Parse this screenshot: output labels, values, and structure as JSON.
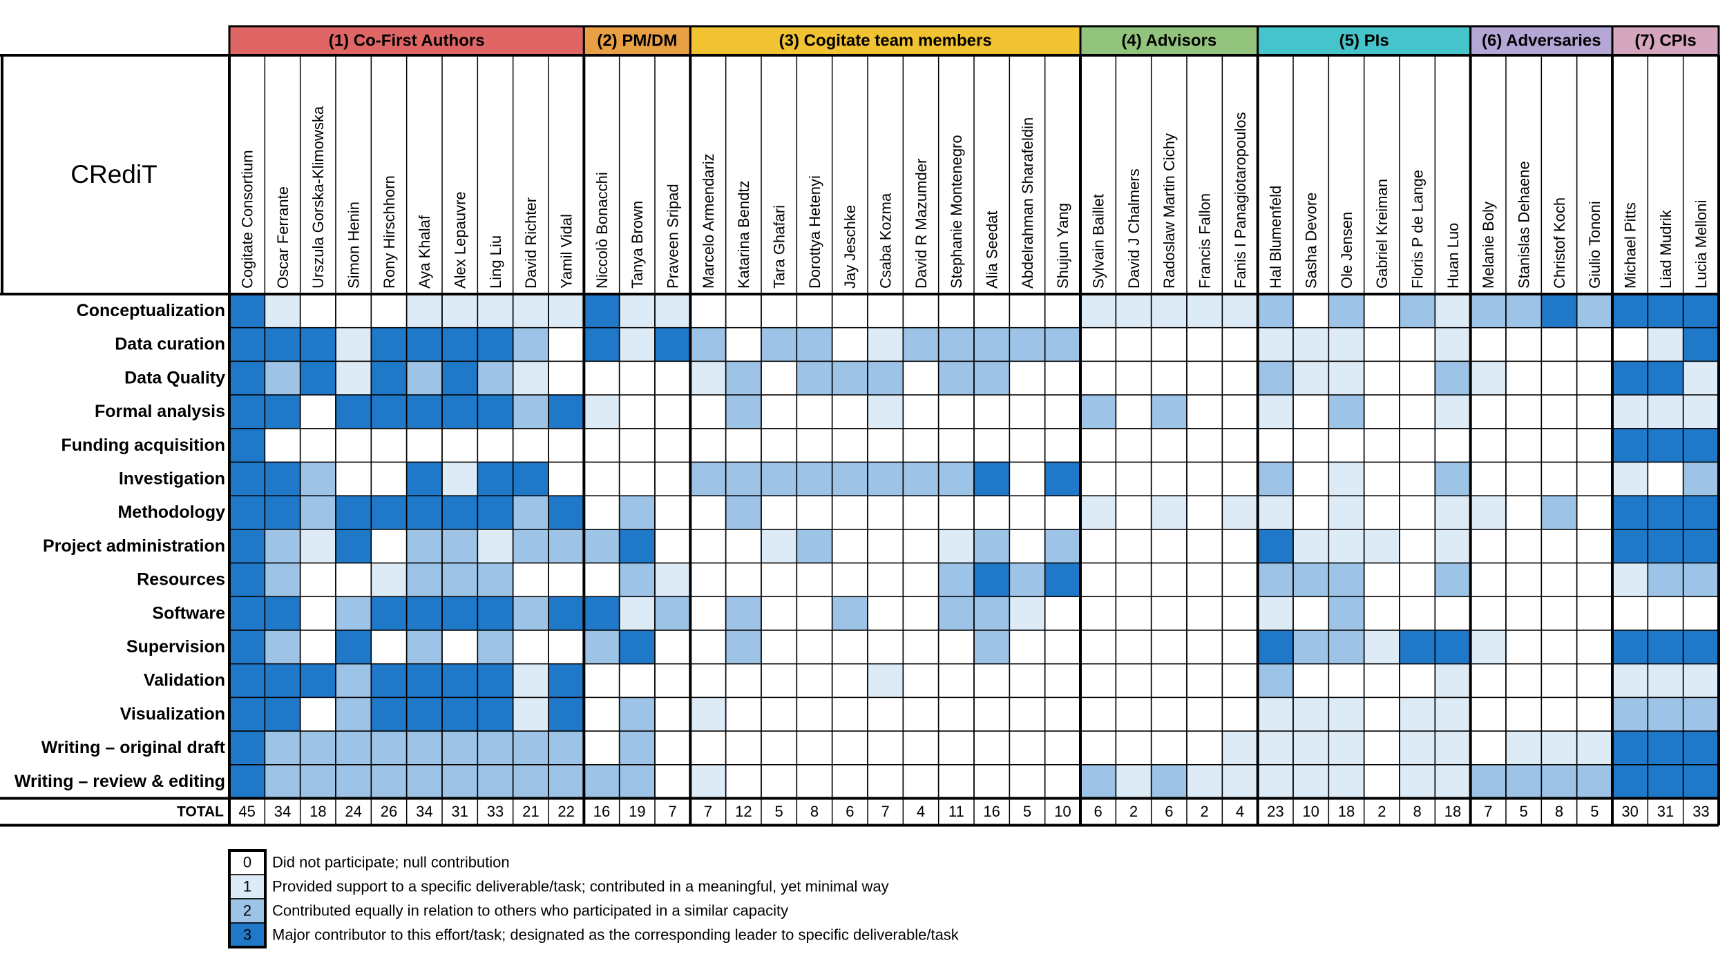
{
  "header": "CRediT",
  "row_labels": [
    "Conceptualization",
    "Data curation",
    "Data Quality",
    "Formal analysis",
    "Funding acquisition",
    "Investigation",
    "Methodology",
    "Project administration",
    "Resources",
    "Software",
    "Supervision",
    "Validation",
    "Visualization",
    "Writing – original draft",
    "Writing – review & editing"
  ],
  "total_label": "TOTAL",
  "level_colors": [
    "#ffffff",
    "#ddebf7",
    "#9dc3e6",
    "#1f78c8"
  ],
  "groups": [
    {
      "label": "(1) Co-First Authors",
      "color": "#e06666",
      "members": [
        {
          "name": "Cogitate Consortium",
          "levels": [
            3,
            3,
            3,
            3,
            3,
            3,
            3,
            3,
            3,
            3,
            3,
            3,
            3,
            3,
            3
          ],
          "total": 45
        },
        {
          "name": "Oscar Ferrante",
          "levels": [
            1,
            3,
            2,
            3,
            0,
            3,
            3,
            2,
            2,
            3,
            2,
            3,
            3,
            2,
            2
          ],
          "total": 34
        },
        {
          "name": "Urszula Gorska-Klimowska",
          "levels": [
            0,
            3,
            3,
            0,
            0,
            2,
            2,
            1,
            0,
            0,
            0,
            3,
            0,
            2,
            2
          ],
          "total": 18
        },
        {
          "name": "Simon Henin",
          "levels": [
            0,
            1,
            1,
            3,
            0,
            0,
            3,
            3,
            0,
            2,
            3,
            2,
            2,
            2,
            2
          ],
          "total": 24
        },
        {
          "name": "Rony Hirschhorn",
          "levels": [
            0,
            3,
            3,
            3,
            0,
            0,
            3,
            0,
            1,
            3,
            0,
            3,
            3,
            2,
            2
          ],
          "total": 26
        },
        {
          "name": "Aya Khalaf",
          "levels": [
            1,
            3,
            2,
            3,
            0,
            3,
            3,
            2,
            2,
            3,
            2,
            3,
            3,
            2,
            2
          ],
          "total": 34
        },
        {
          "name": "Alex Lepauvre",
          "levels": [
            1,
            3,
            3,
            3,
            0,
            1,
            3,
            2,
            2,
            3,
            0,
            3,
            3,
            2,
            2
          ],
          "total": 31
        },
        {
          "name": "Ling Liu",
          "levels": [
            1,
            3,
            2,
            3,
            0,
            3,
            3,
            1,
            2,
            3,
            2,
            3,
            3,
            2,
            2
          ],
          "total": 33
        },
        {
          "name": "David Richter",
          "levels": [
            1,
            2,
            1,
            2,
            0,
            3,
            2,
            2,
            0,
            2,
            0,
            1,
            1,
            2,
            2
          ],
          "total": 21
        },
        {
          "name": "Yamil Vidal",
          "levels": [
            1,
            0,
            0,
            3,
            0,
            0,
            3,
            2,
            0,
            3,
            0,
            3,
            3,
            2,
            2
          ],
          "total": 22
        }
      ]
    },
    {
      "label": "(2) PM/DM",
      "color": "#e8a045",
      "members": [
        {
          "name": "Niccolò Bonacchi",
          "levels": [
            3,
            3,
            0,
            1,
            0,
            0,
            0,
            2,
            0,
            3,
            2,
            0,
            0,
            0,
            2
          ],
          "total": 16
        },
        {
          "name": "Tanya Brown",
          "levels": [
            1,
            1,
            0,
            0,
            0,
            0,
            2,
            3,
            2,
            1,
            3,
            0,
            2,
            2,
            2
          ],
          "total": 19
        },
        {
          "name": "Praveen Sripad",
          "levels": [
            1,
            3,
            0,
            0,
            0,
            0,
            0,
            0,
            1,
            2,
            0,
            0,
            0,
            0,
            0
          ],
          "total": 7
        }
      ]
    },
    {
      "label": "(3) Cogitate team members",
      "color": "#f1c232",
      "members": [
        {
          "name": "Marcelo Armendariz",
          "levels": [
            0,
            2,
            1,
            0,
            0,
            2,
            0,
            0,
            0,
            0,
            0,
            0,
            1,
            0,
            1
          ],
          "total": 7
        },
        {
          "name": "Katarina Bendtz",
          "levels": [
            0,
            0,
            2,
            2,
            0,
            2,
            2,
            0,
            0,
            2,
            2,
            0,
            0,
            0,
            0
          ],
          "total": 12
        },
        {
          "name": "Tara Ghafari",
          "levels": [
            0,
            2,
            0,
            0,
            0,
            2,
            0,
            1,
            0,
            0,
            0,
            0,
            0,
            0,
            0
          ],
          "total": 5
        },
        {
          "name": "Dorottya Hetenyi",
          "levels": [
            0,
            2,
            2,
            0,
            0,
            2,
            0,
            2,
            0,
            0,
            0,
            0,
            0,
            0,
            0
          ],
          "total": 8
        },
        {
          "name": "Jay Jeschke",
          "levels": [
            0,
            0,
            2,
            0,
            0,
            2,
            0,
            0,
            0,
            2,
            0,
            0,
            0,
            0,
            0
          ],
          "total": 6
        },
        {
          "name": "Csaba Kozma",
          "levels": [
            0,
            1,
            2,
            1,
            0,
            2,
            0,
            0,
            0,
            0,
            0,
            1,
            0,
            0,
            0
          ],
          "total": 7
        },
        {
          "name": "David R Mazumder",
          "levels": [
            0,
            2,
            0,
            0,
            0,
            2,
            0,
            0,
            0,
            0,
            0,
            0,
            0,
            0,
            0
          ],
          "total": 4
        },
        {
          "name": "Stephanie Montenegro",
          "levels": [
            0,
            2,
            2,
            0,
            0,
            2,
            0,
            1,
            2,
            2,
            0,
            0,
            0,
            0,
            0
          ],
          "total": 11
        },
        {
          "name": "Alia Seedat",
          "levels": [
            0,
            2,
            2,
            0,
            0,
            3,
            0,
            2,
            3,
            2,
            2,
            0,
            0,
            0,
            0
          ],
          "total": 16
        },
        {
          "name": "Abdelrahman Sharafeldin",
          "levels": [
            0,
            2,
            0,
            0,
            0,
            0,
            0,
            0,
            2,
            1,
            0,
            0,
            0,
            0,
            0
          ],
          "total": 5
        },
        {
          "name": "Shujun Yang",
          "levels": [
            0,
            2,
            0,
            0,
            0,
            3,
            0,
            2,
            3,
            0,
            0,
            0,
            0,
            0,
            0
          ],
          "total": 10
        }
      ]
    },
    {
      "label": "(4) Advisors",
      "color": "#93c47d",
      "members": [
        {
          "name": "Sylvain Baillet",
          "levels": [
            1,
            0,
            0,
            2,
            0,
            0,
            1,
            0,
            0,
            0,
            0,
            0,
            0,
            0,
            2
          ],
          "total": 6
        },
        {
          "name": "David J Chalmers",
          "levels": [
            1,
            0,
            0,
            0,
            0,
            0,
            0,
            0,
            0,
            0,
            0,
            0,
            0,
            0,
            1
          ],
          "total": 2
        },
        {
          "name": "Radoslaw Martin Cichy",
          "levels": [
            1,
            0,
            0,
            2,
            0,
            0,
            1,
            0,
            0,
            0,
            0,
            0,
            0,
            0,
            2
          ],
          "total": 6
        },
        {
          "name": "Francis Fallon",
          "levels": [
            1,
            0,
            0,
            0,
            0,
            0,
            0,
            0,
            0,
            0,
            0,
            0,
            0,
            0,
            1
          ],
          "total": 2
        },
        {
          "name": "Fanis I Panagiotaropoulos",
          "levels": [
            1,
            0,
            0,
            0,
            0,
            0,
            1,
            0,
            0,
            0,
            0,
            0,
            0,
            1,
            1
          ],
          "total": 4
        }
      ]
    },
    {
      "label": "(5) PIs",
      "color": "#45c4cc",
      "members": [
        {
          "name": "Hal Blumenfeld",
          "levels": [
            2,
            1,
            2,
            1,
            0,
            2,
            1,
            3,
            2,
            1,
            3,
            2,
            1,
            1,
            1
          ],
          "total": 23
        },
        {
          "name": "Sasha Devore",
          "levels": [
            0,
            1,
            1,
            0,
            0,
            0,
            0,
            1,
            2,
            0,
            2,
            0,
            1,
            1,
            1
          ],
          "total": 10
        },
        {
          "name": "Ole Jensen",
          "levels": [
            2,
            1,
            1,
            2,
            0,
            1,
            1,
            1,
            2,
            2,
            2,
            0,
            1,
            1,
            1
          ],
          "total": 18
        },
        {
          "name": "Gabriel Kreiman",
          "levels": [
            0,
            0,
            0,
            0,
            0,
            0,
            0,
            1,
            0,
            0,
            1,
            0,
            0,
            0,
            0
          ],
          "total": 2
        },
        {
          "name": "Floris P de Lange",
          "levels": [
            2,
            0,
            0,
            0,
            0,
            0,
            0,
            0,
            0,
            0,
            3,
            0,
            1,
            1,
            1
          ],
          "total": 8
        },
        {
          "name": "Huan Luo",
          "levels": [
            1,
            1,
            2,
            1,
            0,
            2,
            1,
            1,
            2,
            0,
            3,
            1,
            1,
            1,
            1
          ],
          "total": 18
        }
      ]
    },
    {
      "label": "(6) Adversaries",
      "color": "#b4a7d6",
      "members": [
        {
          "name": "Melanie Boly",
          "levels": [
            2,
            0,
            1,
            0,
            0,
            0,
            1,
            0,
            0,
            0,
            1,
            0,
            0,
            0,
            2
          ],
          "total": 7
        },
        {
          "name": "Stanislas Dehaene",
          "levels": [
            2,
            0,
            0,
            0,
            0,
            0,
            0,
            0,
            0,
            0,
            0,
            0,
            0,
            1,
            2
          ],
          "total": 5
        },
        {
          "name": "Christof Koch",
          "levels": [
            3,
            0,
            0,
            0,
            0,
            0,
            2,
            0,
            0,
            0,
            0,
            0,
            0,
            1,
            2
          ],
          "total": 8
        },
        {
          "name": "Giulio Tononi",
          "levels": [
            2,
            0,
            0,
            0,
            0,
            0,
            0,
            0,
            0,
            0,
            0,
            0,
            0,
            1,
            2
          ],
          "total": 5
        }
      ]
    },
    {
      "label": "(7) CPIs",
      "color": "#d5a6bd",
      "members": [
        {
          "name": "Michael Pitts",
          "levels": [
            3,
            0,
            3,
            1,
            3,
            1,
            3,
            3,
            1,
            0,
            3,
            1,
            2,
            3,
            3
          ],
          "total": 30
        },
        {
          "name": "Liad Mudrik",
          "levels": [
            3,
            1,
            3,
            1,
            3,
            0,
            3,
            3,
            2,
            0,
            3,
            1,
            2,
            3,
            3
          ],
          "total": 31
        },
        {
          "name": "Lucia Melloni",
          "levels": [
            3,
            3,
            1,
            1,
            3,
            2,
            3,
            3,
            2,
            0,
            3,
            1,
            2,
            3,
            3
          ],
          "total": 33
        }
      ]
    }
  ],
  "legend": [
    {
      "level": 0,
      "text": "Did not participate; null contribution"
    },
    {
      "level": 1,
      "text": "Provided support to a specific deliverable/task; contributed in a meaningful, yet minimal way"
    },
    {
      "level": 2,
      "text": "Contributed equally in relation to others who participated in a similar capacity"
    },
    {
      "level": 3,
      "text": "Major contributor to this effort/task; designated as the corresponding leader to specific deliverable/task"
    }
  ]
}
